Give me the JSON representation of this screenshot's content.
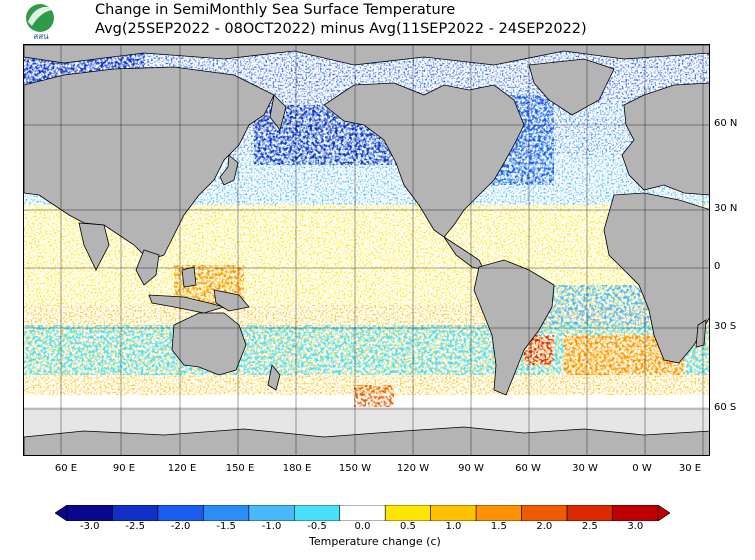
{
  "header": {
    "title": "Change in SemiMonthly Sea Surface Temperature",
    "subtitle": "Avg(25SEP2022 - 08OCT2022) minus Avg(11SEP2022 - 24SEP2022)",
    "logo_text": "สสน"
  },
  "map": {
    "lat_labels": [
      "60 N",
      "30 N",
      "0",
      "30 S",
      "60 S"
    ],
    "lon_labels": [
      "60 E",
      "90 E",
      "120 E",
      "150 E",
      "180 E",
      "150 W",
      "120 W",
      "90 W",
      "60 W",
      "30 W",
      "0 W",
      "30 E"
    ],
    "colors": {
      "land": "#b4b4b4",
      "ice": "#e6e6e6",
      "coast": "#000000",
      "grid": "#000000"
    }
  },
  "legend": {
    "title": "Temperature change  (c)",
    "ticks": [
      "-3.0",
      "-2.5",
      "-2.0",
      "-1.5",
      "-1.0",
      "-0.5",
      "0.0",
      "0.5",
      "1.0",
      "1.5",
      "2.0",
      "2.5",
      "3.0"
    ],
    "colors": [
      "#08088c",
      "#1030c8",
      "#1a5cf0",
      "#2c8cf8",
      "#48b8f8",
      "#48e0f8",
      "#ffffff",
      "#ffe600",
      "#ffc000",
      "#ff9200",
      "#f05a00",
      "#dc2800",
      "#c00000"
    ]
  }
}
